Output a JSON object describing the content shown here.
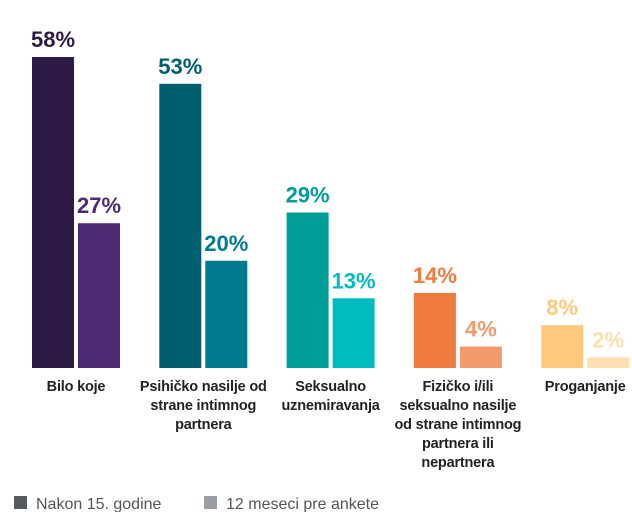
{
  "chart_data": {
    "type": "bar",
    "categories": [
      "Bilo koje",
      "Psihičko nasilje od strane intimnog partnera",
      "Seksualno uznemiravanja",
      "Fizičko i/ili seksualno nasilje od strane intimnog partnera ili nepartnera",
      "Proganjanje"
    ],
    "series": [
      {
        "name": "Nakon 15. godine",
        "color": "#555a5f",
        "colors": [
          "#2e1a47",
          "#005f6e",
          "#009e99",
          "#f07b3f",
          "#fdc97b"
        ],
        "values": [
          58,
          53,
          29,
          14,
          8
        ],
        "value_labels": [
          "58%",
          "53%",
          "29%",
          "14%",
          "8%"
        ]
      },
      {
        "name": "12 meseci pre ankete",
        "color": "#9a9ea2",
        "colors": [
          "#4f2a73",
          "#007a8c",
          "#00bcc0",
          "#f39a6b",
          "#fde0b2"
        ],
        "values": [
          27,
          20,
          13,
          4,
          2
        ],
        "value_labels": [
          "27%",
          "20%",
          "13%",
          "4%",
          "2%"
        ]
      }
    ]
  }
}
